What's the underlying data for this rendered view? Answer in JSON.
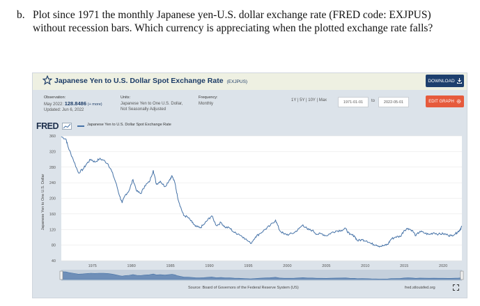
{
  "question": {
    "number": "b.",
    "text": "Plot since 1971 the monthly Japanese yen-U.S. dollar exchange rate (FRED code: EXJPUS) without recession bars. Which currency is appreciating when the plotted exchange rate falls?"
  },
  "graph": {
    "title": "Japanese Yen to U.S. Dollar Spot Exchange Rate",
    "code": "(EXJPUS)",
    "download_label": "DOWNLOAD",
    "edit_label": "EDIT GRAPH",
    "observation_label": "Observation:",
    "observation_date": "May 2022:",
    "observation_value": "128.8486",
    "more_label": "(+ more)",
    "updated": "Updated: Jun 6, 2022",
    "units_label": "Units:",
    "units_line1": "Japanese Yen to One U.S. Dollar,",
    "units_line2": "Not Seasonally Adjusted",
    "frequency_label": "Frequency:",
    "frequency_value": "Monthly",
    "range_links": "1Y | 5Y | 10Y | Max",
    "start_date": "1971-01-01",
    "to_label": "to",
    "end_date": "2022-05-01",
    "logo": "FRED",
    "legend": "Japanese Yen to U.S. Dollar Spot Exchange Rate",
    "source": "Source: Board of Governors of the Federal Reserve System (US)",
    "url": "fred.stlouisfed.org",
    "icons": [
      "star-icon",
      "download-icon",
      "gear-icon",
      "fred-chart-icon",
      "fullscreen-icon"
    ],
    "colors": {
      "line": "#4572a7",
      "title": "#1d3c67",
      "download": "#1d3f6e",
      "edit": "#e65a3c",
      "panel": "#dce3ea"
    }
  },
  "chart_data": {
    "type": "line",
    "ylabel": "Japanese Yen to One U.S. Dollar",
    "xlabel": "",
    "ylim": [
      40,
      360
    ],
    "xlim": [
      1971,
      2022.4
    ],
    "yticks": [
      40,
      80,
      120,
      160,
      200,
      240,
      280,
      320,
      360
    ],
    "xticks": [
      1975,
      1980,
      1985,
      1990,
      1995,
      2000,
      2005,
      2010,
      2015,
      2020
    ],
    "grid": true,
    "series": [
      {
        "name": "Japanese Yen to U.S. Dollar Spot Exchange Rate",
        "points": [
          [
            1971.0,
            358
          ],
          [
            1971.6,
            352
          ],
          [
            1971.9,
            330
          ],
          [
            1972.5,
            301
          ],
          [
            1973.2,
            265
          ],
          [
            1973.8,
            275
          ],
          [
            1974.3,
            290
          ],
          [
            1974.8,
            300
          ],
          [
            1975.3,
            293
          ],
          [
            1975.9,
            301
          ],
          [
            1976.4,
            298
          ],
          [
            1977.0,
            288
          ],
          [
            1977.5,
            268
          ],
          [
            1978.0,
            240
          ],
          [
            1978.5,
            205
          ],
          [
            1978.8,
            188
          ],
          [
            1979.2,
            208
          ],
          [
            1979.7,
            220
          ],
          [
            1980.2,
            248
          ],
          [
            1980.7,
            218
          ],
          [
            1981.2,
            212
          ],
          [
            1981.7,
            232
          ],
          [
            1982.3,
            242
          ],
          [
            1982.8,
            272
          ],
          [
            1983.2,
            236
          ],
          [
            1983.7,
            244
          ],
          [
            1984.3,
            230
          ],
          [
            1984.9,
            248
          ],
          [
            1985.2,
            258
          ],
          [
            1985.6,
            238
          ],
          [
            1985.9,
            205
          ],
          [
            1986.3,
            178
          ],
          [
            1986.7,
            156
          ],
          [
            1987.2,
            152
          ],
          [
            1987.8,
            138
          ],
          [
            1988.2,
            128
          ],
          [
            1988.8,
            124
          ],
          [
            1989.3,
            133
          ],
          [
            1989.8,
            145
          ],
          [
            1990.3,
            155
          ],
          [
            1990.9,
            130
          ],
          [
            1991.5,
            138
          ],
          [
            1992.0,
            126
          ],
          [
            1992.6,
            124
          ],
          [
            1993.2,
            112
          ],
          [
            1993.8,
            108
          ],
          [
            1994.4,
            100
          ],
          [
            1995.3,
            84
          ],
          [
            1995.9,
            101
          ],
          [
            1996.5,
            110
          ],
          [
            1997.2,
            121
          ],
          [
            1997.8,
            130
          ],
          [
            1998.5,
            144
          ],
          [
            1999.0,
            118
          ],
          [
            1999.6,
            108
          ],
          [
            2000.2,
            107
          ],
          [
            2000.9,
            112
          ],
          [
            2001.5,
            122
          ],
          [
            2002.0,
            132
          ],
          [
            2002.6,
            120
          ],
          [
            2003.2,
            118
          ],
          [
            2003.8,
            108
          ],
          [
            2004.4,
            109
          ],
          [
            2005.0,
            104
          ],
          [
            2005.6,
            111
          ],
          [
            2006.2,
            116
          ],
          [
            2006.9,
            118
          ],
          [
            2007.5,
            122
          ],
          [
            2008.0,
            107
          ],
          [
            2008.6,
            104
          ],
          [
            2009.0,
            91
          ],
          [
            2009.6,
            94
          ],
          [
            2010.2,
            91
          ],
          [
            2010.8,
            83
          ],
          [
            2011.4,
            81
          ],
          [
            2011.9,
            77
          ],
          [
            2012.5,
            79
          ],
          [
            2012.9,
            82
          ],
          [
            2013.3,
            95
          ],
          [
            2013.9,
            101
          ],
          [
            2014.5,
            102
          ],
          [
            2015.0,
            118
          ],
          [
            2015.5,
            123
          ],
          [
            2016.0,
            118
          ],
          [
            2016.5,
            104
          ],
          [
            2017.0,
            115
          ],
          [
            2017.6,
            111
          ],
          [
            2018.2,
            107
          ],
          [
            2018.8,
            112
          ],
          [
            2019.4,
            108
          ],
          [
            2020.0,
            109
          ],
          [
            2020.6,
            106
          ],
          [
            2021.0,
            104
          ],
          [
            2021.6,
            110
          ],
          [
            2021.9,
            114
          ],
          [
            2022.2,
            121
          ],
          [
            2022.4,
            128.8
          ]
        ]
      }
    ]
  }
}
